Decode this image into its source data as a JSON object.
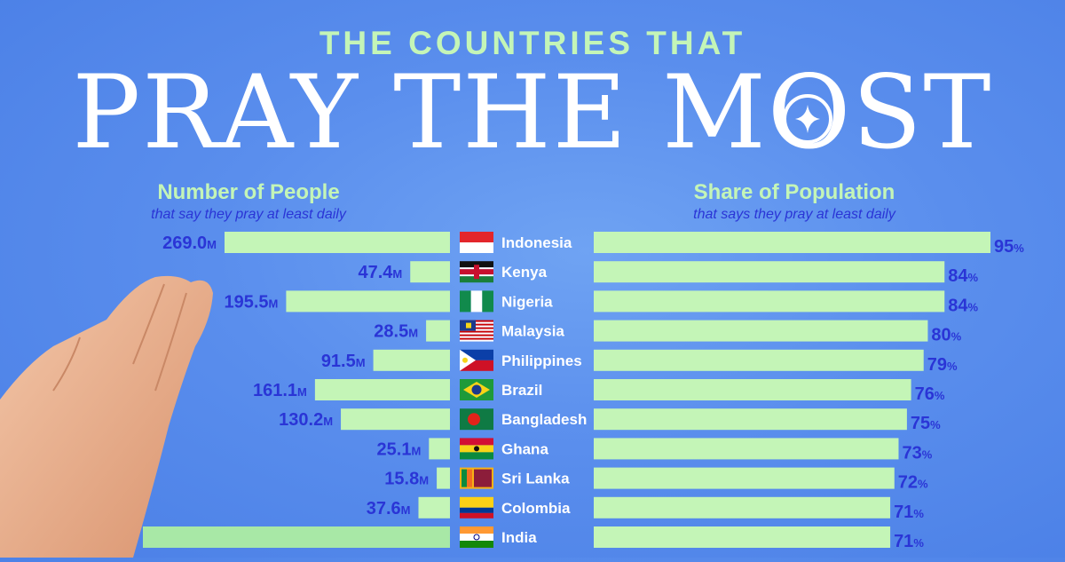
{
  "header": {
    "kicker": "THE COUNTRIES THAT",
    "headline": "PRAY THE MOST"
  },
  "colors": {
    "bar": "#c4f5b7",
    "value_text": "#2a35d6",
    "country_text": "#ffffff",
    "background": "#5a8eed"
  },
  "chart_data": [
    {
      "type": "bar",
      "orientation": "horizontal",
      "title": "Number of People",
      "subtitle": "that say they pray at least daily",
      "unit": "M",
      "categories": [
        "Indonesia",
        "Kenya",
        "Nigeria",
        "Malaysia",
        "Philippines",
        "Brazil",
        "Bangladesh",
        "Ghana",
        "Sri Lanka",
        "Colombia",
        "India"
      ],
      "values": [
        269.0,
        47.4,
        195.5,
        28.5,
        91.5,
        161.1,
        130.2,
        25.1,
        15.8,
        37.6,
        null
      ],
      "labels": [
        "269.0",
        "47.4",
        "195.5",
        "28.5",
        "91.5",
        "161.1",
        "130.2",
        "25.1",
        "15.8",
        "37.6",
        ""
      ],
      "xlim": [
        0,
        300
      ]
    },
    {
      "type": "bar",
      "orientation": "horizontal",
      "title": "Share of Population",
      "subtitle": "that says they pray at least daily",
      "unit": "%",
      "categories": [
        "Indonesia",
        "Kenya",
        "Nigeria",
        "Malaysia",
        "Philippines",
        "Brazil",
        "Bangladesh",
        "Ghana",
        "Sri Lanka",
        "Colombia",
        "India"
      ],
      "values": [
        95,
        84,
        84,
        80,
        79,
        76,
        75,
        73,
        72,
        71,
        71
      ],
      "xlim": [
        0,
        100
      ]
    }
  ],
  "flags": [
    "flag-indonesia-icon",
    "flag-kenya-icon",
    "flag-nigeria-icon",
    "flag-malaysia-icon",
    "flag-philippines-icon",
    "flag-brazil-icon",
    "flag-bangladesh-icon",
    "flag-ghana-icon",
    "flag-sri-lanka-icon",
    "flag-colombia-icon",
    "flag-india-icon"
  ]
}
